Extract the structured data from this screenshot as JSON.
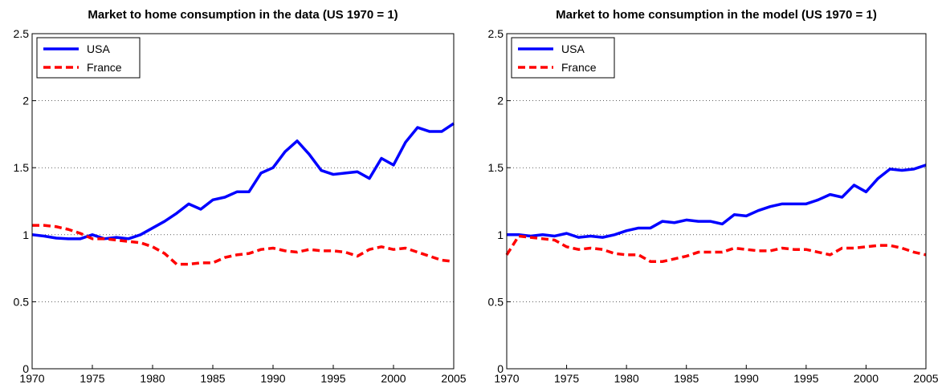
{
  "chart_data": [
    {
      "type": "line",
      "title": "Market to home consumption in the data (US 1970 = 1)",
      "x": [
        1970,
        1971,
        1972,
        1973,
        1974,
        1975,
        1976,
        1977,
        1978,
        1979,
        1980,
        1981,
        1982,
        1983,
        1984,
        1985,
        1986,
        1987,
        1988,
        1989,
        1990,
        1991,
        1992,
        1993,
        1994,
        1995,
        1996,
        1997,
        1998,
        1999,
        2000,
        2001,
        2002,
        2003,
        2004,
        2005
      ],
      "series": [
        {
          "name": "USA",
          "color": "#0000ff",
          "dash": "solid",
          "values": [
            1.0,
            0.99,
            0.975,
            0.97,
            0.97,
            1.0,
            0.97,
            0.98,
            0.97,
            1.0,
            1.05,
            1.1,
            1.16,
            1.23,
            1.19,
            1.26,
            1.28,
            1.32,
            1.32,
            1.46,
            1.5,
            1.62,
            1.7,
            1.6,
            1.48,
            1.45,
            1.46,
            1.47,
            1.42,
            1.57,
            1.52,
            1.69,
            1.8,
            1.77,
            1.77,
            1.83
          ]
        },
        {
          "name": "France",
          "color": "#ff0000",
          "dash": "dashed",
          "values": [
            1.07,
            1.07,
            1.06,
            1.04,
            1.01,
            0.97,
            0.97,
            0.96,
            0.95,
            0.94,
            0.91,
            0.86,
            0.78,
            0.78,
            0.79,
            0.79,
            0.83,
            0.85,
            0.86,
            0.89,
            0.9,
            0.88,
            0.87,
            0.89,
            0.88,
            0.88,
            0.87,
            0.84,
            0.89,
            0.91,
            0.89,
            0.9,
            0.87,
            0.84,
            0.81,
            0.8
          ]
        }
      ],
      "xlim": [
        1970,
        2005
      ],
      "xticks": [
        1970,
        1975,
        1980,
        1985,
        1990,
        1995,
        2000,
        2005
      ],
      "ylim": [
        0,
        2.5
      ],
      "yticks": [
        0,
        0.5,
        1,
        1.5,
        2,
        2.5
      ],
      "grid": true,
      "legend": "upper-left"
    },
    {
      "type": "line",
      "title": "Market to home consumption in the model (US 1970 = 1)",
      "x": [
        1970,
        1971,
        1972,
        1973,
        1974,
        1975,
        1976,
        1977,
        1978,
        1979,
        1980,
        1981,
        1982,
        1983,
        1984,
        1985,
        1986,
        1987,
        1988,
        1989,
        1990,
        1991,
        1992,
        1993,
        1994,
        1995,
        1996,
        1997,
        1998,
        1999,
        2000,
        2001,
        2002,
        2003,
        2004,
        2005
      ],
      "series": [
        {
          "name": "USA",
          "color": "#0000ff",
          "dash": "solid",
          "values": [
            1.0,
            1.0,
            0.99,
            1.0,
            0.99,
            1.01,
            0.98,
            0.99,
            0.98,
            1.0,
            1.03,
            1.05,
            1.05,
            1.1,
            1.09,
            1.11,
            1.1,
            1.1,
            1.08,
            1.15,
            1.14,
            1.18,
            1.21,
            1.23,
            1.23,
            1.23,
            1.26,
            1.3,
            1.28,
            1.37,
            1.32,
            1.42,
            1.49,
            1.48,
            1.49,
            1.52
          ]
        },
        {
          "name": "France",
          "color": "#ff0000",
          "dash": "dashed",
          "values": [
            0.85,
            0.99,
            0.98,
            0.97,
            0.96,
            0.91,
            0.89,
            0.9,
            0.89,
            0.86,
            0.85,
            0.85,
            0.8,
            0.8,
            0.82,
            0.84,
            0.87,
            0.87,
            0.87,
            0.9,
            0.89,
            0.88,
            0.88,
            0.9,
            0.89,
            0.89,
            0.87,
            0.85,
            0.9,
            0.9,
            0.91,
            0.92,
            0.92,
            0.9,
            0.87,
            0.85
          ]
        }
      ],
      "xlim": [
        1970,
        2005
      ],
      "xticks": [
        1970,
        1975,
        1980,
        1985,
        1990,
        1995,
        2000,
        2005
      ],
      "ylim": [
        0,
        2.5
      ],
      "yticks": [
        0,
        0.5,
        1,
        1.5,
        2,
        2.5
      ],
      "grid": true,
      "legend": "upper-left"
    }
  ]
}
